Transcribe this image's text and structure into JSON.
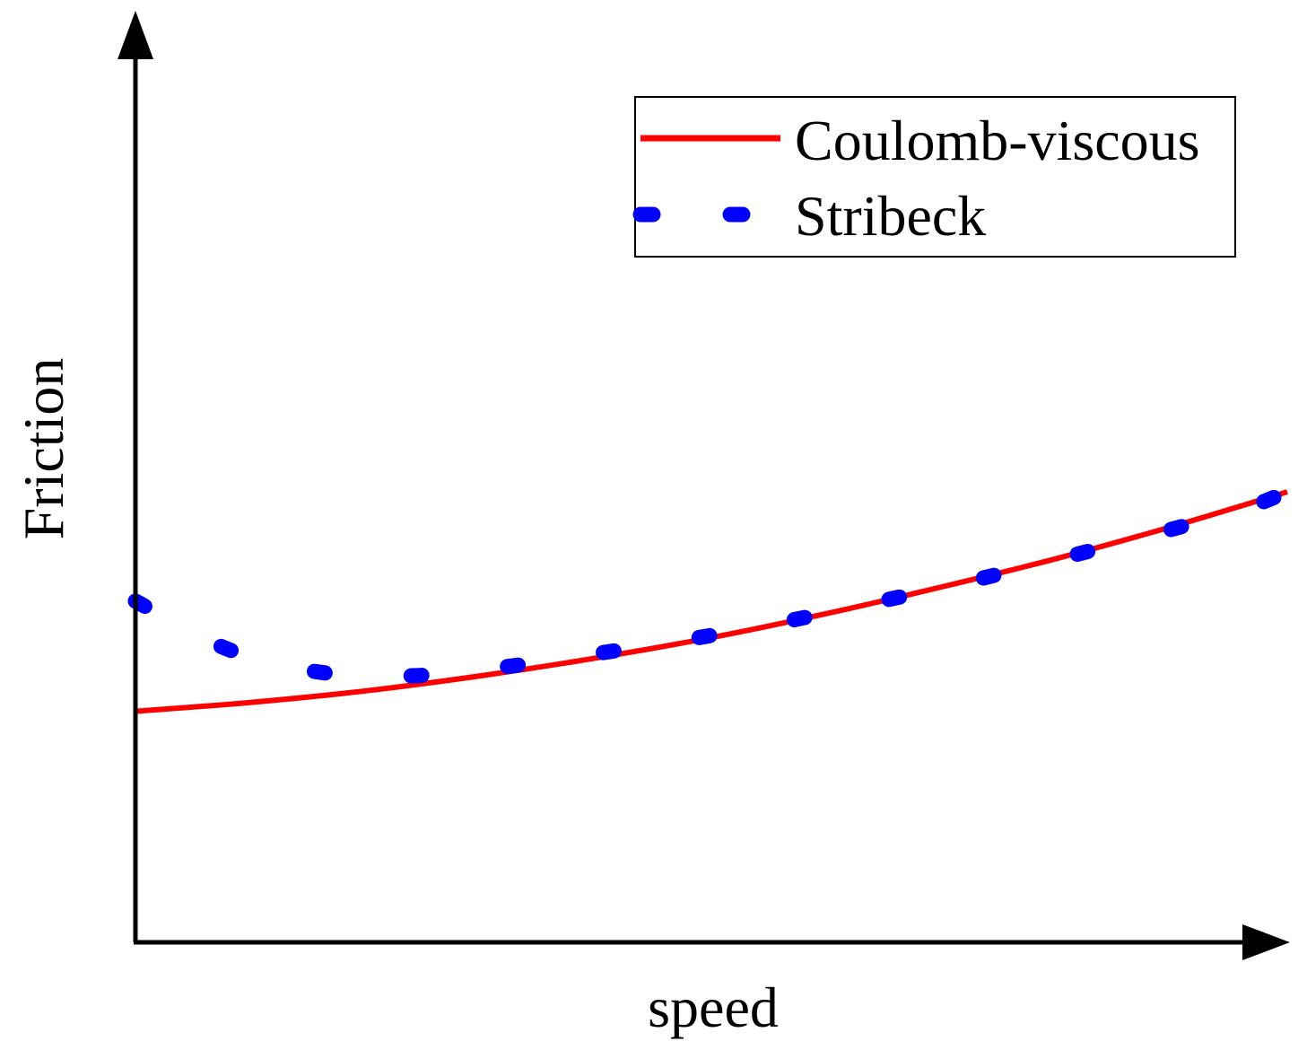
{
  "chart_data": {
    "type": "line",
    "title": "",
    "xlabel": "speed",
    "ylabel": "Friction",
    "xlim": [
      0,
      10
    ],
    "ylim": [
      0,
      10
    ],
    "grid": false,
    "legend_position": "top-right",
    "series": [
      {
        "name": "Coulomb-viscous",
        "color": "#ff0000",
        "style": "solid",
        "x": [
          0,
          1,
          2,
          3,
          4,
          5,
          6,
          7,
          8,
          9,
          10
        ],
        "y": [
          2.6,
          2.7,
          2.83,
          3.0,
          3.2,
          3.43,
          3.7,
          4.0,
          4.32,
          4.68,
          5.07
        ]
      },
      {
        "name": "Stribeck",
        "color": "#0000ff",
        "style": "dashed",
        "x": [
          0,
          0.8,
          1.6,
          2.4,
          3.2,
          4.0,
          4.8,
          5.6,
          6.4,
          7.2,
          8.0,
          8.8,
          9.6,
          10
        ],
        "y": [
          3.84,
          3.3,
          3.04,
          3.0,
          3.1,
          3.25,
          3.41,
          3.6,
          3.82,
          4.05,
          4.31,
          4.58,
          4.87,
          5.07
        ]
      }
    ]
  }
}
